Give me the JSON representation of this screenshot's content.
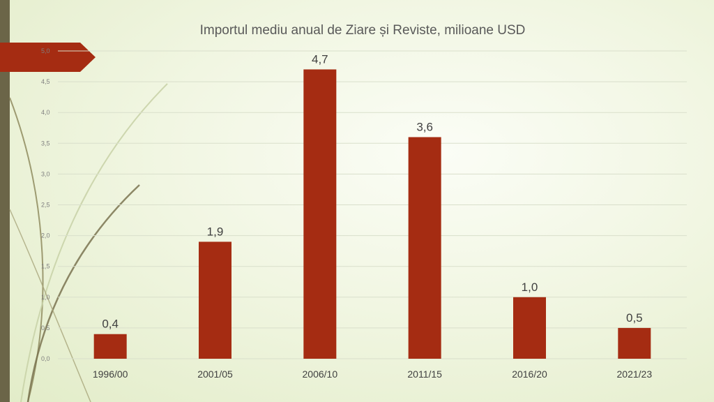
{
  "chart_data": {
    "type": "bar",
    "title": "Importul mediu anual de Ziare și Reviste, milioane USD",
    "categories": [
      "1996/00",
      "2001/05",
      "2006/10",
      "2011/15",
      "2016/20",
      "2021/23"
    ],
    "values": [
      0.4,
      1.9,
      4.7,
      3.6,
      1.0,
      0.5
    ],
    "data_labels": [
      "0,4",
      "1,9",
      "4,7",
      "3,6",
      "1,0",
      "0,5"
    ],
    "y_ticks": [
      "0,0",
      "0,5",
      "1,0",
      "1,5",
      "2,0",
      "2,5",
      "3,0",
      "3,5",
      "4,0",
      "4,5",
      "5,0"
    ],
    "ylim": [
      0,
      5
    ],
    "grid": true,
    "bar_color": "#a52c12"
  },
  "theme": {
    "accent": "#a52c12",
    "side_bar_color": "#6b6548"
  }
}
